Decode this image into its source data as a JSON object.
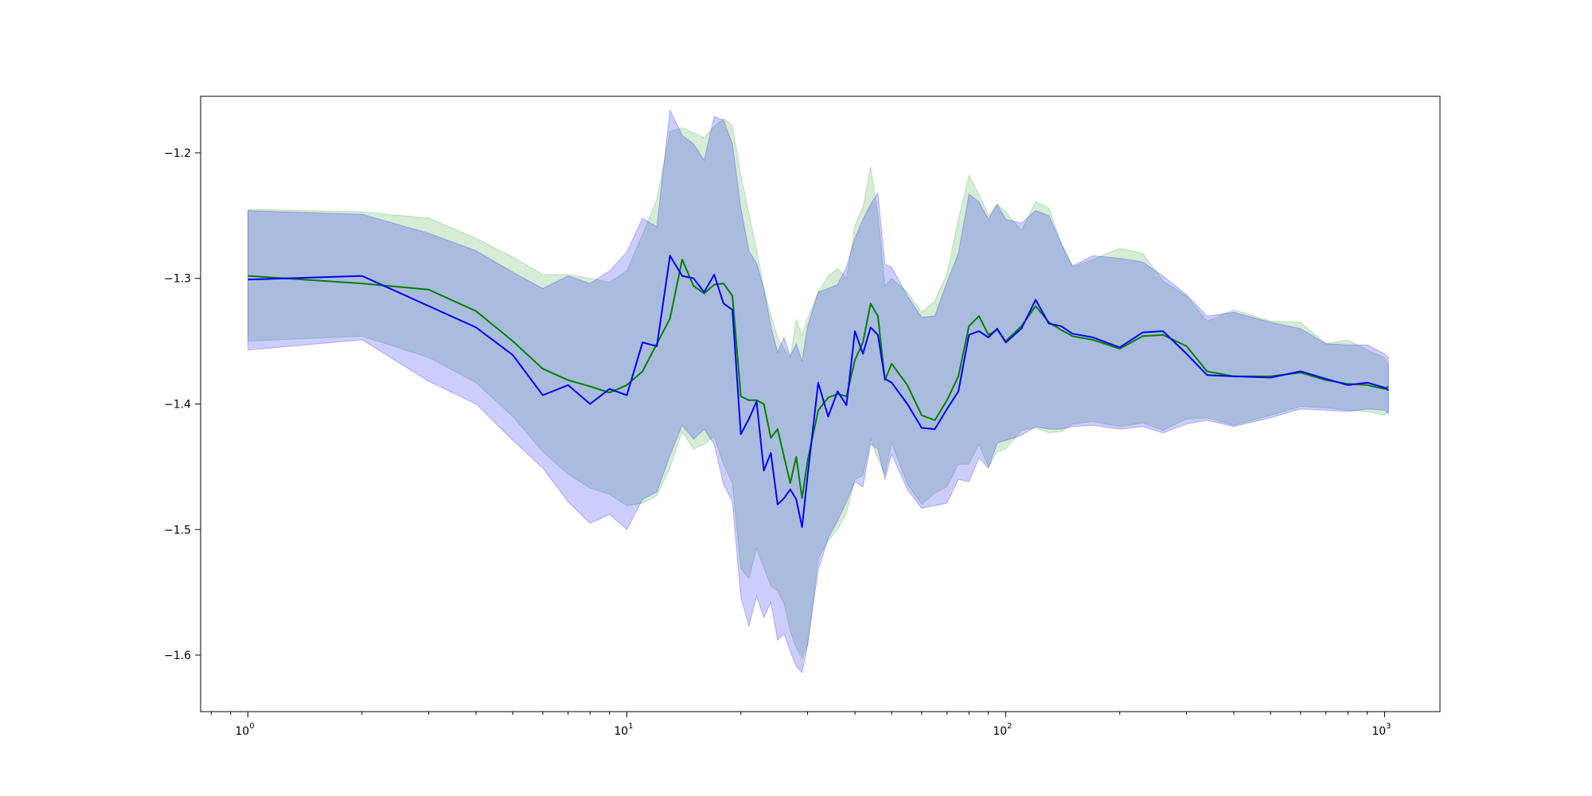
{
  "chart_data": {
    "type": "line",
    "title": "",
    "xlabel": "",
    "ylabel": "",
    "x_scale": "log",
    "xlim": [
      0.75,
      1400
    ],
    "ylim": [
      -1.645,
      -1.155
    ],
    "x_ticks": [
      {
        "value": 1,
        "base": "10",
        "exp": "0"
      },
      {
        "value": 10,
        "base": "10",
        "exp": "1"
      },
      {
        "value": 100,
        "base": "10",
        "exp": "2"
      },
      {
        "value": 1000,
        "base": "10",
        "exp": "3"
      }
    ],
    "y_ticks": [
      {
        "value": -1.2,
        "label": "−1.2"
      },
      {
        "value": -1.3,
        "label": "−1.3"
      },
      {
        "value": -1.4,
        "label": "−1.4"
      },
      {
        "value": -1.5,
        "label": "−1.5"
      },
      {
        "value": -1.6,
        "label": "−1.6"
      }
    ],
    "grid": false,
    "legend": "none",
    "series": [
      {
        "color": "#008000",
        "band_color": "#2ca02c",
        "x": [
          1,
          2,
          3,
          4,
          5,
          6,
          7,
          8,
          9,
          10,
          11,
          12,
          13,
          14,
          15,
          16,
          17,
          18,
          19,
          20,
          21,
          22,
          23,
          24,
          25,
          26,
          27,
          28,
          29,
          30,
          32,
          34,
          36,
          38,
          40,
          42,
          44,
          46,
          48,
          50,
          55,
          60,
          65,
          70,
          75,
          80,
          85,
          90,
          95,
          100,
          110,
          120,
          130,
          140,
          150,
          170,
          200,
          230,
          260,
          300,
          340,
          400,
          500,
          600,
          700,
          800,
          900,
          1000,
          1024
        ],
        "y": [
          -1.298,
          -1.304,
          -1.309,
          -1.326,
          -1.35,
          -1.372,
          -1.381,
          -1.386,
          -1.391,
          -1.385,
          -1.374,
          -1.352,
          -1.332,
          -1.285,
          -1.306,
          -1.312,
          -1.305,
          -1.304,
          -1.314,
          -1.394,
          -1.397,
          -1.397,
          -1.4,
          -1.427,
          -1.42,
          -1.442,
          -1.463,
          -1.442,
          -1.475,
          -1.445,
          -1.405,
          -1.395,
          -1.392,
          -1.394,
          -1.365,
          -1.351,
          -1.32,
          -1.33,
          -1.381,
          -1.368,
          -1.385,
          -1.409,
          -1.413,
          -1.397,
          -1.378,
          -1.338,
          -1.33,
          -1.345,
          -1.341,
          -1.35,
          -1.338,
          -1.322,
          -1.335,
          -1.341,
          -1.346,
          -1.349,
          -1.356,
          -1.346,
          -1.345,
          -1.354,
          -1.374,
          -1.378,
          -1.378,
          -1.375,
          -1.381,
          -1.384,
          -1.385,
          -1.388,
          -1.386
        ],
        "upper": [
          -1.245,
          -1.247,
          -1.252,
          -1.268,
          -1.283,
          -1.297,
          -1.297,
          -1.3,
          -1.303,
          -1.294,
          -1.265,
          -1.237,
          -1.183,
          -1.18,
          -1.184,
          -1.188,
          -1.179,
          -1.173,
          -1.178,
          -1.218,
          -1.248,
          -1.277,
          -1.308,
          -1.329,
          -1.347,
          -1.356,
          -1.363,
          -1.333,
          -1.345,
          -1.332,
          -1.311,
          -1.298,
          -1.292,
          -1.3,
          -1.258,
          -1.243,
          -1.211,
          -1.249,
          -1.306,
          -1.3,
          -1.311,
          -1.327,
          -1.318,
          -1.296,
          -1.253,
          -1.218,
          -1.233,
          -1.25,
          -1.241,
          -1.247,
          -1.262,
          -1.239,
          -1.244,
          -1.272,
          -1.291,
          -1.285,
          -1.276,
          -1.28,
          -1.302,
          -1.314,
          -1.334,
          -1.325,
          -1.334,
          -1.335,
          -1.352,
          -1.349,
          -1.357,
          -1.363,
          -1.37
        ],
        "lower": [
          -1.35,
          -1.346,
          -1.363,
          -1.383,
          -1.41,
          -1.438,
          -1.456,
          -1.467,
          -1.472,
          -1.481,
          -1.479,
          -1.473,
          -1.451,
          -1.422,
          -1.436,
          -1.432,
          -1.426,
          -1.448,
          -1.463,
          -1.531,
          -1.539,
          -1.515,
          -1.53,
          -1.545,
          -1.549,
          -1.559,
          -1.581,
          -1.594,
          -1.602,
          -1.592,
          -1.523,
          -1.509,
          -1.5,
          -1.487,
          -1.46,
          -1.457,
          -1.428,
          -1.444,
          -1.456,
          -1.431,
          -1.464,
          -1.48,
          -1.471,
          -1.466,
          -1.448,
          -1.448,
          -1.432,
          -1.45,
          -1.438,
          -1.436,
          -1.421,
          -1.419,
          -1.423,
          -1.422,
          -1.416,
          -1.414,
          -1.418,
          -1.415,
          -1.421,
          -1.412,
          -1.411,
          -1.417,
          -1.409,
          -1.402,
          -1.403,
          -1.405,
          -1.406,
          -1.409,
          -1.405
        ]
      },
      {
        "color": "#0000ff",
        "band_color": "#0000ff",
        "x": [
          1,
          2,
          3,
          4,
          5,
          6,
          7,
          8,
          9,
          10,
          11,
          12,
          13,
          14,
          15,
          16,
          17,
          18,
          19,
          20,
          21,
          22,
          23,
          24,
          25,
          26,
          27,
          28,
          29,
          30,
          32,
          34,
          36,
          38,
          40,
          42,
          44,
          46,
          48,
          50,
          55,
          60,
          65,
          70,
          75,
          80,
          85,
          90,
          95,
          100,
          110,
          120,
          130,
          140,
          150,
          170,
          200,
          230,
          260,
          300,
          340,
          400,
          500,
          600,
          700,
          800,
          900,
          1000,
          1024
        ],
        "y": [
          -1.301,
          -1.298,
          -1.322,
          -1.339,
          -1.361,
          -1.393,
          -1.385,
          -1.4,
          -1.388,
          -1.393,
          -1.351,
          -1.354,
          -1.282,
          -1.298,
          -1.3,
          -1.311,
          -1.297,
          -1.32,
          -1.325,
          -1.424,
          -1.412,
          -1.398,
          -1.453,
          -1.439,
          -1.48,
          -1.475,
          -1.468,
          -1.476,
          -1.498,
          -1.457,
          -1.383,
          -1.41,
          -1.39,
          -1.401,
          -1.342,
          -1.36,
          -1.339,
          -1.345,
          -1.38,
          -1.383,
          -1.4,
          -1.419,
          -1.42,
          -1.404,
          -1.39,
          -1.345,
          -1.342,
          -1.347,
          -1.34,
          -1.351,
          -1.34,
          -1.317,
          -1.336,
          -1.338,
          -1.344,
          -1.347,
          -1.355,
          -1.343,
          -1.342,
          -1.36,
          -1.377,
          -1.378,
          -1.379,
          -1.374,
          -1.38,
          -1.385,
          -1.383,
          -1.387,
          -1.389
        ],
        "upper": [
          -1.246,
          -1.249,
          -1.264,
          -1.278,
          -1.295,
          -1.308,
          -1.298,
          -1.304,
          -1.294,
          -1.279,
          -1.252,
          -1.259,
          -1.166,
          -1.186,
          -1.193,
          -1.206,
          -1.171,
          -1.174,
          -1.193,
          -1.244,
          -1.278,
          -1.288,
          -1.308,
          -1.338,
          -1.359,
          -1.347,
          -1.362,
          -1.352,
          -1.366,
          -1.338,
          -1.311,
          -1.308,
          -1.305,
          -1.291,
          -1.268,
          -1.253,
          -1.241,
          -1.232,
          -1.289,
          -1.291,
          -1.314,
          -1.331,
          -1.33,
          -1.303,
          -1.28,
          -1.233,
          -1.239,
          -1.253,
          -1.241,
          -1.253,
          -1.256,
          -1.246,
          -1.25,
          -1.272,
          -1.29,
          -1.282,
          -1.284,
          -1.287,
          -1.298,
          -1.313,
          -1.33,
          -1.327,
          -1.335,
          -1.34,
          -1.352,
          -1.353,
          -1.353,
          -1.36,
          -1.363
        ],
        "lower": [
          -1.357,
          -1.349,
          -1.382,
          -1.4,
          -1.429,
          -1.451,
          -1.478,
          -1.495,
          -1.488,
          -1.5,
          -1.476,
          -1.47,
          -1.441,
          -1.417,
          -1.428,
          -1.42,
          -1.432,
          -1.464,
          -1.478,
          -1.554,
          -1.577,
          -1.553,
          -1.57,
          -1.558,
          -1.588,
          -1.583,
          -1.597,
          -1.609,
          -1.614,
          -1.592,
          -1.532,
          -1.507,
          -1.493,
          -1.478,
          -1.462,
          -1.466,
          -1.432,
          -1.436,
          -1.46,
          -1.44,
          -1.468,
          -1.483,
          -1.481,
          -1.479,
          -1.46,
          -1.462,
          -1.443,
          -1.451,
          -1.431,
          -1.429,
          -1.425,
          -1.418,
          -1.42,
          -1.42,
          -1.418,
          -1.417,
          -1.42,
          -1.418,
          -1.423,
          -1.416,
          -1.413,
          -1.418,
          -1.411,
          -1.404,
          -1.405,
          -1.406,
          -1.404,
          -1.405,
          -1.408
        ]
      }
    ]
  }
}
